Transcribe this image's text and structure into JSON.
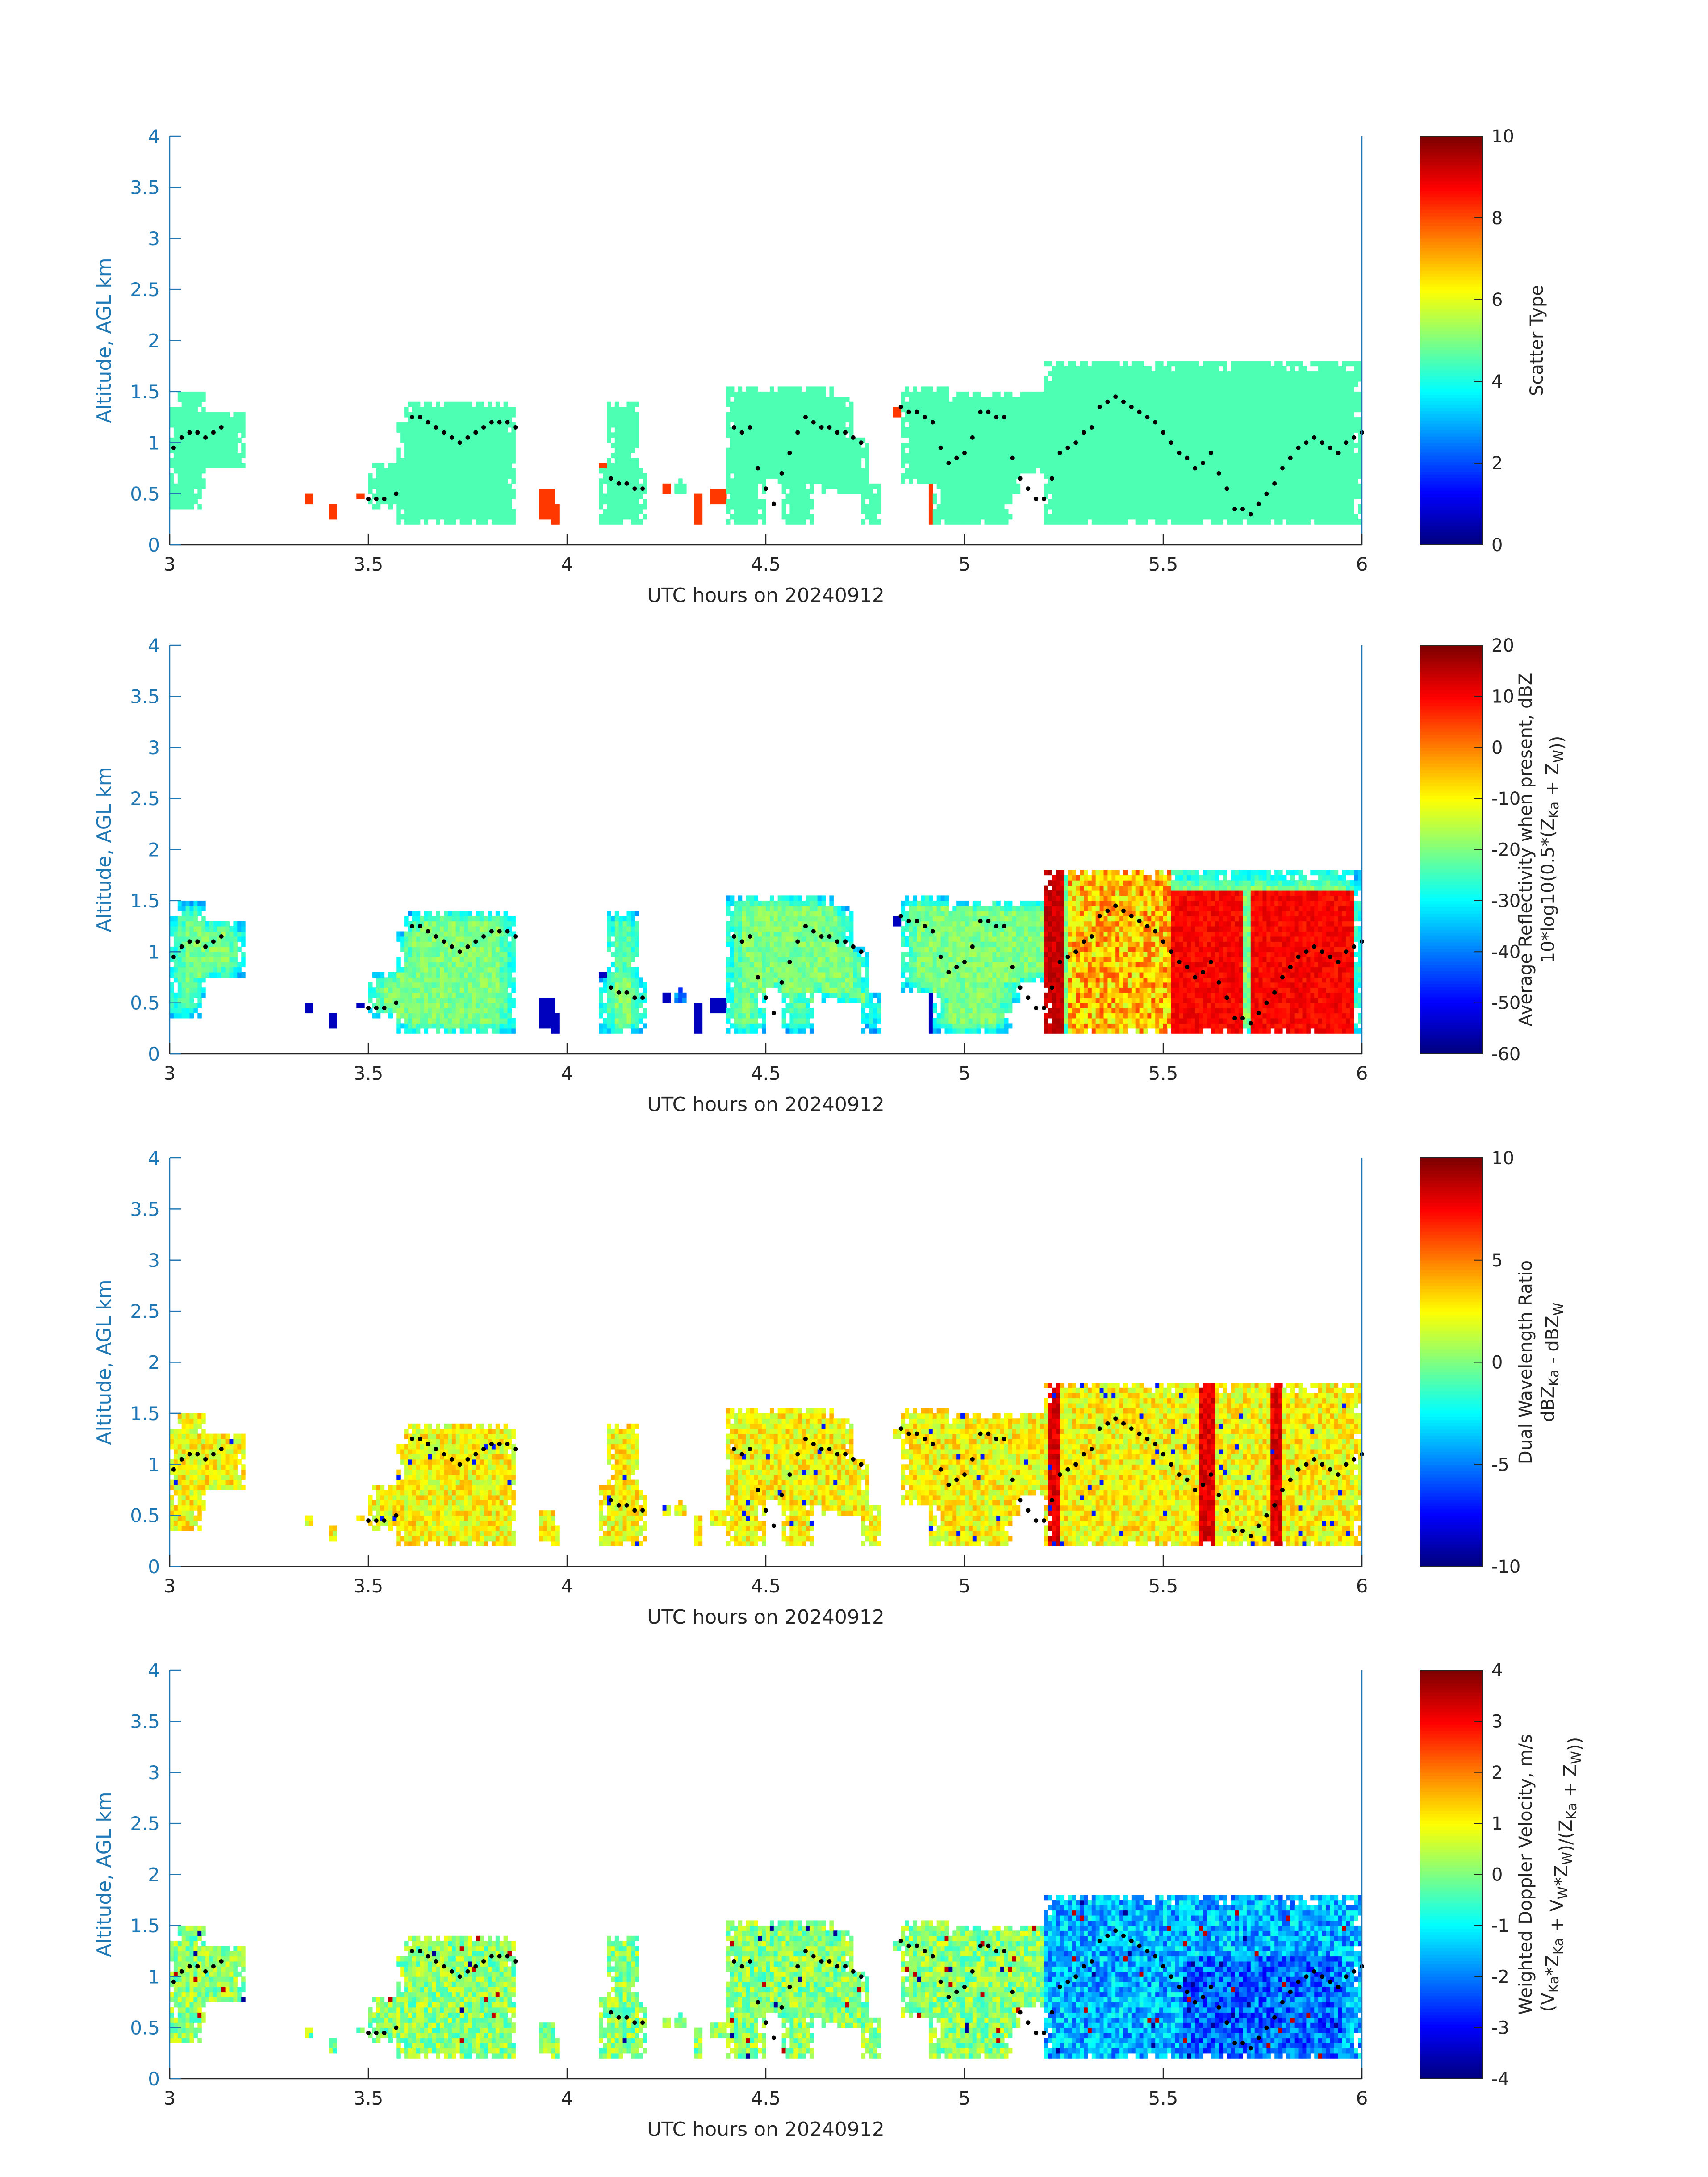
{
  "figure": {
    "common_xlabel": "UTC hours on 20240912",
    "common_ylabel": "Altitude, AGL km"
  },
  "chart_data": [
    {
      "type": "heatmap",
      "title": "",
      "xlabel": "UTC hours on 20240912",
      "ylabel": "Altitude, AGL km",
      "xlim": [
        3,
        6
      ],
      "ylim": [
        0,
        4
      ],
      "x_ticks": [
        "3",
        "3.5",
        "4",
        "4.5",
        "5",
        "5.5",
        "6"
      ],
      "y_ticks": [
        "0",
        "0.5",
        "1",
        "1.5",
        "2",
        "2.5",
        "3",
        "3.5",
        "4"
      ],
      "colorbar": {
        "label_lines": [
          "Scatter Type"
        ],
        "range": [
          0,
          10
        ],
        "ticks": [
          "0",
          "2",
          "4",
          "6",
          "8",
          "10"
        ],
        "colormap": "jet"
      },
      "field": "scatter_type",
      "dominant_values": {
        "cloud_region": 4.5,
        "isolated_low_echoes": 8.2
      }
    },
    {
      "type": "heatmap",
      "title": "",
      "xlabel": "UTC hours on 20240912",
      "ylabel": "Altitude, AGL km",
      "xlim": [
        3,
        6
      ],
      "ylim": [
        0,
        4
      ],
      "x_ticks": [
        "3",
        "3.5",
        "4",
        "4.5",
        "5",
        "5.5",
        "6"
      ],
      "y_ticks": [
        "0",
        "0.5",
        "1",
        "1.5",
        "2",
        "2.5",
        "3",
        "3.5",
        "4"
      ],
      "colorbar": {
        "label_lines": [
          "Average Reflectivity when present, dBZ",
          "10*log10(0.5*(Z_Ka + Z_W))"
        ],
        "range": [
          -60,
          20
        ],
        "ticks": [
          "-60",
          "-50",
          "-40",
          "-30",
          "-20",
          "-10",
          "0",
          "10",
          "20"
        ],
        "colormap": "jet"
      },
      "field": "reflectivity_dBZ",
      "typical_range": {
        "early_clouds": [
          -60,
          -15
        ],
        "late_core_5.55_6.0": [
          5,
          15
        ]
      }
    },
    {
      "type": "heatmap",
      "title": "",
      "xlabel": "UTC hours on 20240912",
      "ylabel": "Altitude, AGL km",
      "xlim": [
        3,
        6
      ],
      "ylim": [
        0,
        4
      ],
      "x_ticks": [
        "3",
        "3.5",
        "4",
        "4.5",
        "5",
        "5.5",
        "6"
      ],
      "y_ticks": [
        "0",
        "0.5",
        "1",
        "1.5",
        "2",
        "2.5",
        "3",
        "3.5",
        "4"
      ],
      "colorbar": {
        "label_lines": [
          "Dual Wavelength Ratio",
          "dBZ_Ka - dBZ_W"
        ],
        "range": [
          -10,
          10
        ],
        "ticks": [
          "-10",
          "-5",
          "0",
          "5",
          "10"
        ],
        "colormap": "jet"
      },
      "field": "dual_wavelength_ratio_dB",
      "typical_range": [
        1,
        4
      ],
      "peak_columns_hours": [
        5.22,
        5.6,
        5.78
      ]
    },
    {
      "type": "heatmap",
      "title": "",
      "xlabel": "UTC hours on 20240912",
      "ylabel": "Altitude, AGL km",
      "xlim": [
        3,
        6
      ],
      "ylim": [
        0,
        4
      ],
      "x_ticks": [
        "3",
        "3.5",
        "4",
        "4.5",
        "5",
        "5.5",
        "6"
      ],
      "y_ticks": [
        "0",
        "0.5",
        "1",
        "1.5",
        "2",
        "2.5",
        "3",
        "3.5",
        "4"
      ],
      "colorbar": {
        "label_lines": [
          "Weighted Doppler Velocity, m/s",
          "(V_Ka*Z_Ka + V_W*Z_W)/(Z_Ka + Z_W))"
        ],
        "range": [
          -4,
          4
        ],
        "ticks": [
          "-4",
          "-3",
          "-2",
          "-1",
          "0",
          "1",
          "2",
          "3",
          "4"
        ],
        "colormap": "jet"
      },
      "field": "weighted_doppler_velocity_ms",
      "typical_range": {
        "early_clouds": [
          -0.5,
          0.8
        ],
        "late_core_5.2_6.0": [
          -3,
          -1
        ]
      }
    }
  ],
  "overlay_series": {
    "description_marker": "black dots",
    "x": [
      3.01,
      3.03,
      3.05,
      3.07,
      3.09,
      3.11,
      3.13,
      3.5,
      3.52,
      3.54,
      3.57,
      3.61,
      3.63,
      3.65,
      3.67,
      3.69,
      3.71,
      3.73,
      3.75,
      3.77,
      3.79,
      3.81,
      3.83,
      3.85,
      3.87,
      4.11,
      4.13,
      4.15,
      4.17,
      4.19,
      4.42,
      4.44,
      4.46,
      4.48,
      4.5,
      4.52,
      4.54,
      4.56,
      4.58,
      4.6,
      4.62,
      4.64,
      4.66,
      4.68,
      4.7,
      4.72,
      4.74,
      4.84,
      4.86,
      4.88,
      4.9,
      4.92,
      4.94,
      4.96,
      4.98,
      5.0,
      5.02,
      5.04,
      5.06,
      5.08,
      5.1,
      5.12,
      5.14,
      5.16,
      5.18,
      5.2,
      5.22,
      5.24,
      5.26,
      5.28,
      5.3,
      5.32,
      5.34,
      5.36,
      5.38,
      5.4,
      5.42,
      5.44,
      5.46,
      5.48,
      5.5,
      5.52,
      5.54,
      5.56,
      5.58,
      5.6,
      5.62,
      5.64,
      5.66,
      5.68,
      5.7,
      5.72,
      5.74,
      5.76,
      5.78,
      5.8,
      5.82,
      5.84,
      5.86,
      5.88,
      5.9,
      5.92,
      5.94,
      5.96,
      5.98,
      6.0
    ],
    "y": [
      0.95,
      1.05,
      1.1,
      1.1,
      1.05,
      1.1,
      1.15,
      0.45,
      0.45,
      0.45,
      0.5,
      1.25,
      1.25,
      1.2,
      1.15,
      1.1,
      1.05,
      1.0,
      1.05,
      1.1,
      1.15,
      1.2,
      1.2,
      1.2,
      1.15,
      0.65,
      0.6,
      0.6,
      0.55,
      0.55,
      1.15,
      1.1,
      1.15,
      0.75,
      0.55,
      0.4,
      0.7,
      0.9,
      1.1,
      1.25,
      1.2,
      1.15,
      1.15,
      1.1,
      1.1,
      1.05,
      1.0,
      1.35,
      1.3,
      1.3,
      1.25,
      1.2,
      0.95,
      0.8,
      0.85,
      0.9,
      1.05,
      1.3,
      1.3,
      1.25,
      1.25,
      0.85,
      0.65,
      0.55,
      0.45,
      0.45,
      0.65,
      0.9,
      0.95,
      1.0,
      1.1,
      1.15,
      1.35,
      1.4,
      1.45,
      1.4,
      1.35,
      1.3,
      1.25,
      1.2,
      1.1,
      1.0,
      0.9,
      0.85,
      0.75,
      0.8,
      0.9,
      0.7,
      0.55,
      0.35,
      0.35,
      0.3,
      0.4,
      0.5,
      0.6,
      0.75,
      0.85,
      0.95,
      1.0,
      1.05,
      1.0,
      0.95,
      0.9,
      1.0,
      1.05,
      1.1
    ]
  }
}
